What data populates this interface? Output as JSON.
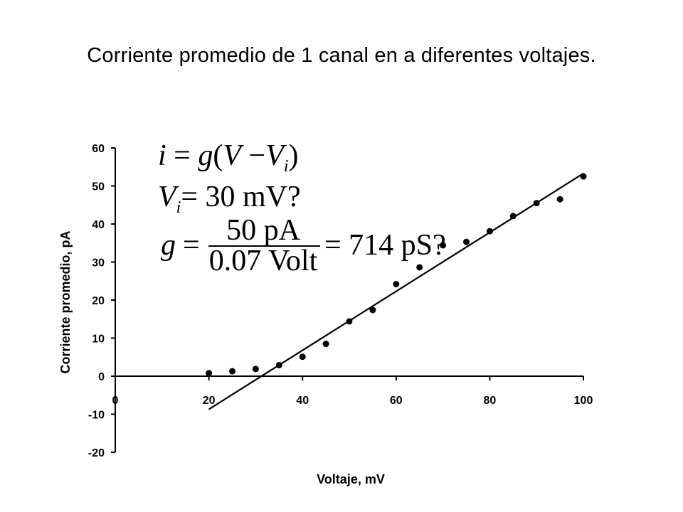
{
  "slide": {
    "title": "Corriente promedio de 1 canal en a diferentes voltajes."
  },
  "equations": {
    "line1": {
      "i": "i",
      "eq": " = ",
      "g": "g",
      "open": "(",
      "V": "V",
      "minus": " −",
      "Vi": "V",
      "sub": "i",
      "close": ")"
    },
    "line2": {
      "V": "V",
      "sub": "i",
      "rest": "= 30 mV?"
    },
    "line3": {
      "g": "g",
      "eq": "=",
      "num": "50 pA",
      "den": "0.07 Volt",
      "rest": "= 714 pS?"
    }
  },
  "chart_data": {
    "type": "scatter",
    "xlabel": "Voltaje, mV",
    "ylabel": "Corriente promedio, pA",
    "xlim": [
      0,
      100
    ],
    "ylim": [
      -20,
      60
    ],
    "x_ticks": [
      0,
      20,
      40,
      60,
      80,
      100
    ],
    "y_ticks": [
      -20,
      -10,
      0,
      10,
      20,
      30,
      40,
      50,
      60
    ],
    "x_tick_labels": [
      "0",
      "20",
      "40",
      "60",
      "80",
      "100"
    ],
    "y_tick_labels": [
      "-20",
      "-10",
      "0",
      "10",
      "20",
      "30",
      "40",
      "50",
      "60"
    ],
    "grid": false,
    "series": [
      {
        "type": "scatter",
        "color": "#000000",
        "x": [
          20,
          25,
          30,
          35,
          40,
          45,
          50,
          55,
          60,
          65,
          70,
          75,
          80,
          85,
          90,
          95,
          100
        ],
        "y": [
          0.8,
          1.3,
          1.9,
          2.9,
          5.1,
          8.5,
          14.4,
          17.4,
          24.2,
          28.6,
          34.4,
          35.3,
          38.1,
          42.1,
          45.5,
          46.5,
          52.5
        ]
      },
      {
        "type": "line",
        "color": "#000000",
        "x": [
          20,
          100
        ],
        "y": [
          -8.7,
          53.3
        ]
      }
    ]
  }
}
